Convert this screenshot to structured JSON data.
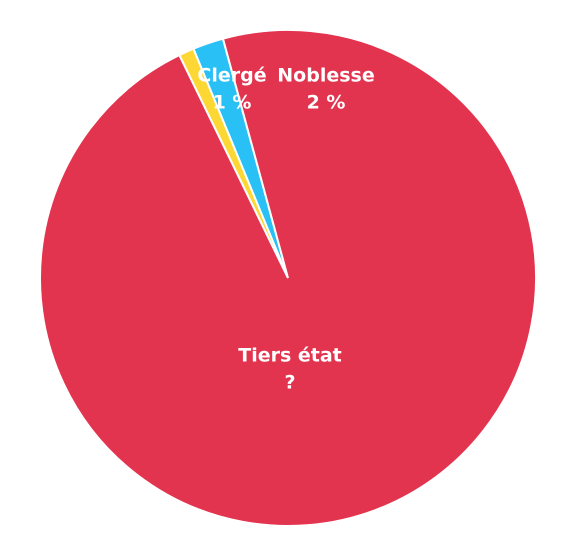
{
  "chart_data": {
    "type": "pie",
    "categories": [
      "Clergé",
      "Noblesse",
      "Tiers état"
    ],
    "values": [
      1,
      2,
      null
    ],
    "value_labels": [
      "1 %",
      "2 %",
      "?"
    ],
    "colors": [
      "#fdd835",
      "#29c0f5",
      "#e3344f"
    ]
  }
}
